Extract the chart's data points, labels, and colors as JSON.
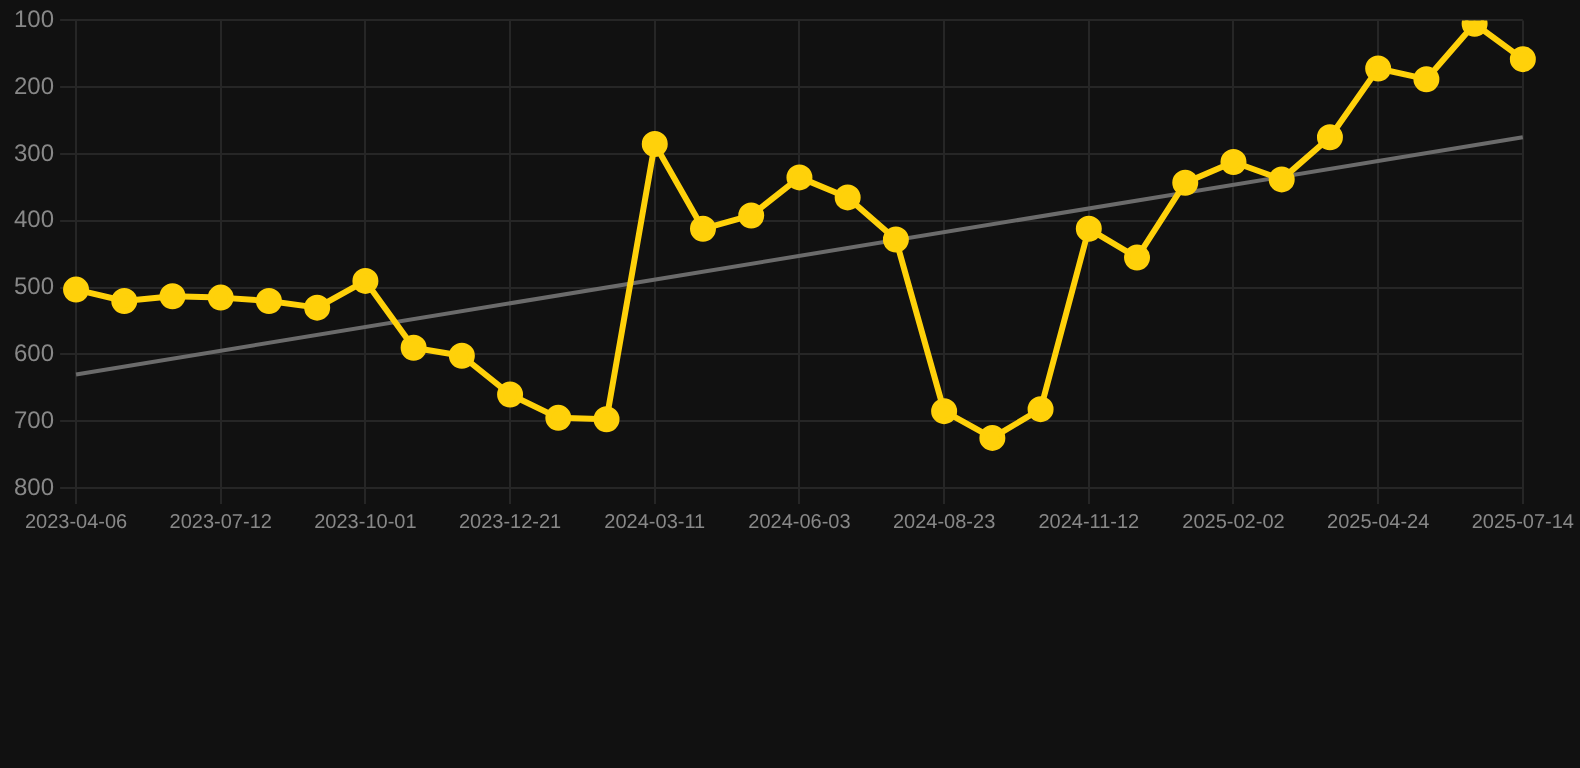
{
  "chart_data": {
    "type": "line",
    "categories": [
      "2023-04-06",
      null,
      null,
      "2023-07-12",
      null,
      null,
      "2023-10-01",
      null,
      null,
      "2023-12-21",
      null,
      null,
      "2024-03-11",
      null,
      null,
      "2024-06-03",
      null,
      null,
      "2024-08-23",
      null,
      null,
      "2024-11-12",
      null,
      null,
      "2025-02-02",
      null,
      null,
      "2025-04-24",
      null,
      null,
      "2025-07-14"
    ],
    "series": [
      {
        "color": "#ffd10a",
        "marker": "circle",
        "values": [
          503,
          520,
          513,
          515,
          520,
          530,
          490,
          590,
          602,
          660,
          695,
          697,
          285,
          412,
          392,
          335,
          365,
          428,
          685,
          725,
          682,
          412,
          455,
          343,
          312,
          338,
          275,
          172,
          188,
          105,
          158
        ]
      },
      {
        "type": "line",
        "color": "#6b6b6b",
        "marker": "none",
        "values": [
          630,
          null,
          null,
          null,
          null,
          null,
          null,
          null,
          null,
          null,
          null,
          null,
          null,
          null,
          null,
          null,
          null,
          null,
          null,
          null,
          null,
          null,
          null,
          null,
          null,
          null,
          null,
          null,
          null,
          null,
          275
        ]
      }
    ],
    "ylim": [
      800,
      100
    ],
    "yticks": [
      100,
      200,
      300,
      400,
      500,
      600,
      700,
      800
    ],
    "grid": true,
    "legend": false
  }
}
